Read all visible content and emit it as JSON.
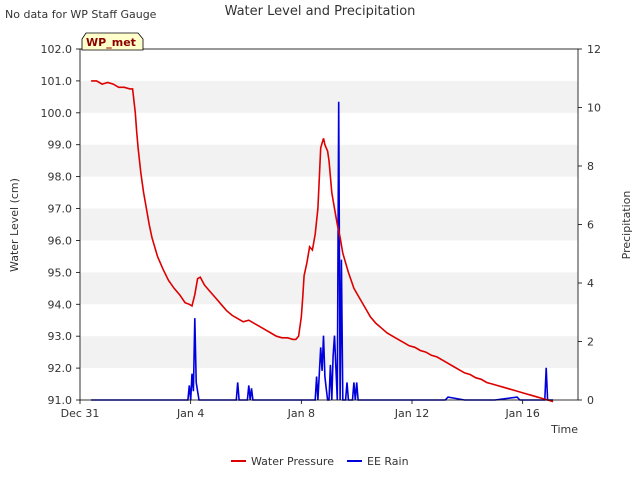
{
  "chart_data": {
    "type": "line",
    "title": "Water Level and Precipitation",
    "note": "No data for WP Staff Gauge",
    "badge": "WP_met",
    "xlabel": "Time",
    "ylabel_left": "Water Level (cm)",
    "ylabel_right": "Precipitation",
    "x_range_days": [
      0,
      18
    ],
    "x_ticks": [
      {
        "day": 0,
        "label": "Dec 31"
      },
      {
        "day": 4,
        "label": "Jan 4"
      },
      {
        "day": 8,
        "label": "Jan 8"
      },
      {
        "day": 12,
        "label": "Jan 12"
      },
      {
        "day": 16,
        "label": "Jan 16"
      }
    ],
    "ylim_left": [
      91.0,
      102.0
    ],
    "yticks_left": [
      "91.0",
      "92.0",
      "93.0",
      "94.0",
      "95.0",
      "96.0",
      "97.0",
      "98.0",
      "99.0",
      "100.0",
      "101.0",
      "102.0"
    ],
    "ylim_right": [
      0,
      12
    ],
    "yticks_right": [
      "0",
      "2",
      "4",
      "6",
      "8",
      "10",
      "12"
    ],
    "legend_position": "bottom-center",
    "grid": "alternating horizontal bands",
    "colors": {
      "water": "#dd0000",
      "rain": "#0000dd",
      "band": "#f2f2f2",
      "badge_fill": "#ffffcc",
      "badge_text": "#8b0000"
    },
    "series": [
      {
        "name": "Water Pressure",
        "axis": "left",
        "x": [
          0.4,
          0.6,
          0.8,
          1.0,
          1.2,
          1.4,
          1.6,
          1.8,
          1.9,
          2.0,
          2.05,
          2.1,
          2.2,
          2.3,
          2.4,
          2.5,
          2.6,
          2.8,
          3.0,
          3.2,
          3.4,
          3.6,
          3.8,
          3.95,
          4.05,
          4.15,
          4.25,
          4.35,
          4.5,
          4.7,
          4.9,
          5.1,
          5.3,
          5.5,
          5.7,
          5.9,
          6.1,
          6.3,
          6.5,
          6.7,
          6.9,
          7.1,
          7.3,
          7.5,
          7.7,
          7.8,
          7.85,
          7.9,
          8.0,
          8.05,
          8.1,
          8.2,
          8.3,
          8.4,
          8.5,
          8.6,
          8.7,
          8.8,
          8.85,
          8.9,
          8.95,
          9.0,
          9.05,
          9.1,
          9.2,
          9.3,
          9.4,
          9.5,
          9.7,
          9.9,
          10.1,
          10.3,
          10.5,
          10.7,
          10.9,
          11.1,
          11.3,
          11.5,
          11.7,
          11.9,
          12.1,
          12.3,
          12.5,
          12.7,
          12.9,
          13.1,
          13.3,
          13.5,
          13.7,
          13.9,
          14.1,
          14.3,
          14.5,
          14.7,
          14.9,
          15.1,
          15.3,
          15.5,
          15.7,
          15.9,
          16.1,
          16.3,
          16.5,
          16.7,
          16.9,
          17.1
        ],
        "values": [
          101.0,
          101.0,
          100.9,
          100.95,
          100.9,
          100.8,
          100.8,
          100.75,
          100.75,
          100.0,
          99.4,
          98.9,
          98.1,
          97.5,
          97.0,
          96.5,
          96.1,
          95.5,
          95.1,
          94.75,
          94.5,
          94.3,
          94.05,
          94.0,
          93.95,
          94.3,
          94.8,
          94.85,
          94.6,
          94.4,
          94.2,
          94.0,
          93.8,
          93.65,
          93.55,
          93.45,
          93.5,
          93.4,
          93.3,
          93.2,
          93.1,
          93.0,
          92.95,
          92.95,
          92.9,
          92.9,
          92.95,
          93.0,
          93.6,
          94.2,
          94.9,
          95.3,
          95.8,
          95.7,
          96.2,
          97.0,
          98.9,
          99.2,
          99.0,
          98.9,
          98.8,
          98.5,
          98.0,
          97.5,
          97.0,
          96.5,
          96.1,
          95.6,
          95.0,
          94.5,
          94.2,
          93.9,
          93.6,
          93.4,
          93.25,
          93.1,
          93.0,
          92.9,
          92.8,
          92.7,
          92.65,
          92.55,
          92.5,
          92.4,
          92.35,
          92.25,
          92.15,
          92.05,
          91.95,
          91.85,
          91.8,
          91.7,
          91.65,
          91.55,
          91.5,
          91.45,
          91.4,
          91.35,
          91.3,
          91.25,
          91.2,
          91.15,
          91.1,
          91.05,
          91.0,
          90.95
        ]
      },
      {
        "name": "EE Rain",
        "axis": "right",
        "x": [
          0.4,
          3.9,
          3.95,
          4.0,
          4.05,
          4.1,
          4.15,
          4.2,
          4.25,
          4.3,
          4.35,
          4.4,
          4.45,
          4.5,
          5.0,
          5.6,
          5.65,
          5.7,
          5.75,
          5.8,
          6.0,
          6.05,
          6.1,
          6.15,
          6.2,
          6.25,
          6.3,
          6.35,
          6.4,
          7.3,
          7.35,
          7.4,
          8.0,
          8.5,
          8.55,
          8.6,
          8.7,
          8.75,
          8.8,
          8.85,
          8.9,
          8.95,
          9.0,
          9.05,
          9.1,
          9.15,
          9.2,
          9.3,
          9.35,
          9.4,
          9.45,
          9.5,
          9.55,
          9.6,
          9.65,
          9.7,
          9.75,
          9.8,
          9.85,
          9.9,
          9.95,
          10.0,
          10.05,
          10.1,
          10.15,
          10.2,
          10.25,
          10.3,
          10.35,
          10.4,
          10.45,
          10.5,
          10.55,
          10.6,
          10.65,
          10.7,
          11.0,
          12.0,
          12.4,
          12.5,
          12.6,
          13.0,
          13.2,
          13.3,
          13.9,
          14.0,
          15.0,
          15.8,
          15.9,
          16.0,
          16.7,
          16.8,
          16.85,
          16.9,
          17.0,
          17.1
        ],
        "values": [
          0,
          0,
          0.5,
          0,
          0.9,
          0.3,
          2.8,
          0.6,
          0.3,
          0,
          0,
          0,
          0,
          0,
          0,
          0,
          0,
          0.6,
          0,
          0,
          0,
          0,
          0.5,
          0,
          0.4,
          0,
          0,
          0,
          0,
          0,
          0,
          0,
          0,
          0,
          0.8,
          0,
          1.8,
          1.0,
          2.2,
          0.8,
          0.4,
          0,
          0,
          1.2,
          0,
          1.5,
          2.2,
          0,
          10.2,
          0,
          4.8,
          0,
          0,
          0,
          0.6,
          0,
          0,
          0,
          0,
          0.6,
          0,
          0.6,
          0,
          0,
          0,
          0,
          0,
          0,
          0,
          0,
          0,
          0,
          0,
          0,
          0,
          0,
          0,
          0,
          0,
          0,
          0,
          0,
          0,
          0.1,
          0,
          0,
          0,
          0.1,
          0,
          0,
          0,
          0,
          1.1,
          0,
          0,
          0
        ]
      }
    ]
  }
}
